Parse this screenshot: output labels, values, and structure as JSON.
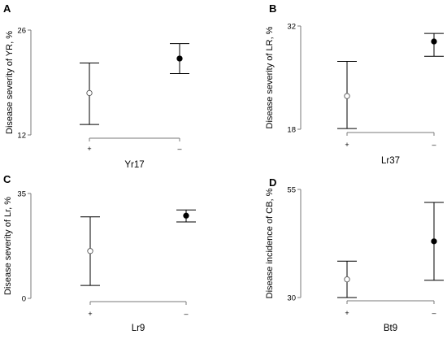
{
  "chart_data": [
    {
      "type": "scatter",
      "panel": "A",
      "ylabel": "Disease severity of YR, %",
      "xlabel": "Yr17",
      "yticks": [
        12,
        26
      ],
      "ylim": [
        12,
        26
      ],
      "categories": [
        "+",
        "–"
      ],
      "points": [
        {
          "category": "+",
          "mean": 17.6,
          "low": 13.4,
          "high": 21.6,
          "filled": false
        },
        {
          "category": "–",
          "mean": 22.2,
          "low": 20.2,
          "high": 24.2,
          "filled": true
        }
      ]
    },
    {
      "type": "scatter",
      "panel": "B",
      "ylabel": "Disease severity of LR, %",
      "xlabel": "Lr37",
      "yticks": [
        18,
        32
      ],
      "ylim": [
        18,
        32
      ],
      "categories": [
        "+",
        "–"
      ],
      "points": [
        {
          "category": "+",
          "mean": 22.5,
          "low": 18.1,
          "high": 27.2,
          "filled": false
        },
        {
          "category": "–",
          "mean": 29.9,
          "low": 27.9,
          "high": 31.0,
          "filled": true
        }
      ]
    },
    {
      "type": "scatter",
      "panel": "C",
      "ylabel": "Disease severity of Lr, %",
      "xlabel": "Lr9",
      "yticks": [
        0,
        35
      ],
      "ylim": [
        0,
        35
      ],
      "categories": [
        "+",
        "–"
      ],
      "points": [
        {
          "category": "+",
          "mean": 15.8,
          "low": 4.3,
          "high": 27.2,
          "filled": false
        },
        {
          "category": "–",
          "mean": 27.6,
          "low": 25.5,
          "high": 29.5,
          "filled": true
        }
      ]
    },
    {
      "type": "scatter",
      "panel": "D",
      "ylabel": "Disease incidence of CB, %",
      "xlabel": "Bt9",
      "yticks": [
        30,
        55
      ],
      "ylim": [
        30,
        55
      ],
      "categories": [
        "+",
        "–"
      ],
      "points": [
        {
          "category": "+",
          "mean": 34.2,
          "low": 30.0,
          "high": 38.4,
          "filled": false
        },
        {
          "category": "–",
          "mean": 43.0,
          "low": 34.0,
          "high": 52.0,
          "filled": true
        }
      ]
    }
  ]
}
